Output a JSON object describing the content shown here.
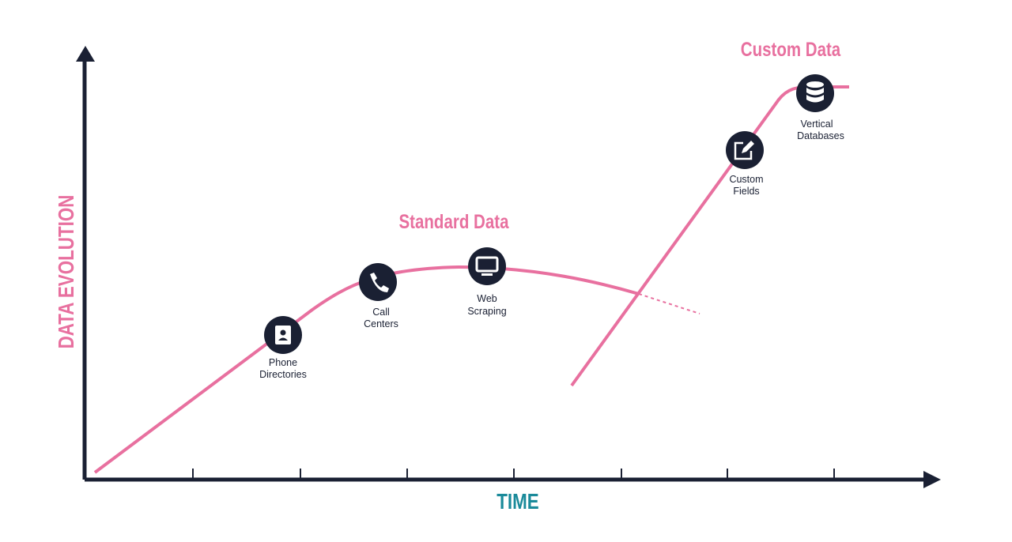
{
  "axes": {
    "y_label": "DATA EVOLUTION",
    "x_label": "TIME"
  },
  "phases": [
    {
      "label": "Standard Data"
    },
    {
      "label": "Custom Data"
    }
  ],
  "nodes": [
    {
      "lines": [
        "Phone",
        "Directories"
      ]
    },
    {
      "lines": [
        "Call",
        "Centers"
      ]
    },
    {
      "lines": [
        "Web",
        "Scraping"
      ]
    },
    {
      "lines": [
        "Custom",
        "Fields"
      ]
    },
    {
      "lines": [
        "Vertical",
        "Databases"
      ]
    }
  ]
}
